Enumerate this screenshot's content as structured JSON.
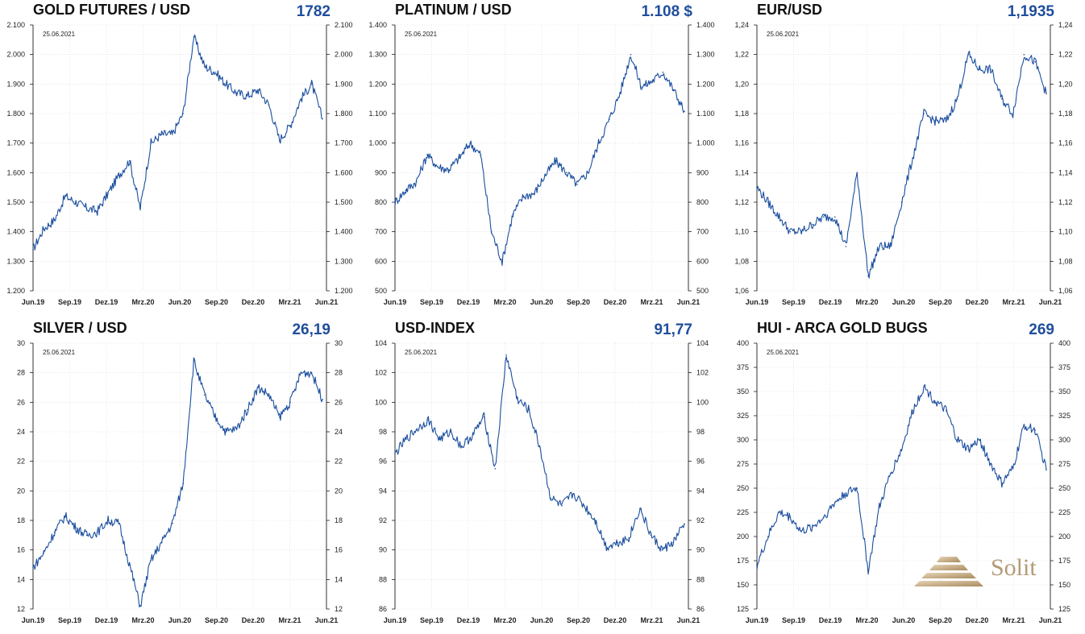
{
  "chart_data": [
    {
      "type": "line",
      "title": "GOLD FUTURES / USD",
      "current_value": "1782",
      "date_label": "25.06.2021",
      "x_tick_labels": [
        "Jun.19",
        "Sep.19",
        "Dez.19",
        "Mrz.20",
        "Jun.20",
        "Sep.20",
        "Dez.20",
        "Mrz.21",
        "Jun.21"
      ],
      "y_tick_labels": [
        "2.100",
        "2.000",
        "1.900",
        "1.800",
        "1.700",
        "1.600",
        "1.500",
        "1.400",
        "1.300",
        "1.200"
      ],
      "ylim": [
        1200,
        2100
      ],
      "x": [
        "2019-06",
        "2019-07",
        "2019-08",
        "2019-09",
        "2019-10",
        "2019-11",
        "2019-12",
        "2020-01",
        "2020-02",
        "2020-03a",
        "2020-03b",
        "2020-04",
        "2020-05",
        "2020-06",
        "2020-07",
        "2020-08a",
        "2020-08b",
        "2020-09",
        "2020-10",
        "2020-11",
        "2020-12",
        "2021-01",
        "2021-02",
        "2021-03",
        "2021-04",
        "2021-05",
        "2021-06a",
        "2021-06b"
      ],
      "series": [
        {
          "values": [
            1340,
            1410,
            1440,
            1520,
            1500,
            1480,
            1470,
            1530,
            1590,
            1640,
            1480,
            1700,
            1730,
            1730,
            1800,
            2060,
            1960,
            1940,
            1900,
            1870,
            1860,
            1880,
            1830,
            1710,
            1760,
            1850,
            1900,
            1782
          ]
        }
      ]
    },
    {
      "type": "line",
      "title": "PLATINUM / USD",
      "current_value": "1.108 $",
      "date_label": "25.06.2021",
      "x_tick_labels": [
        "Jun.19",
        "Sep.19",
        "Dez.19",
        "Mrz.20",
        "Jun.20",
        "Sep.20",
        "Dez.20",
        "Mrz.21",
        "Jun.21"
      ],
      "y_tick_labels": [
        "1.400",
        "1.300",
        "1.200",
        "1.100",
        "1.000",
        "900",
        "800",
        "700",
        "600",
        "500"
      ],
      "ylim": [
        500,
        1400
      ],
      "x": [
        "2019-06",
        "2019-07",
        "2019-08",
        "2019-09",
        "2019-10",
        "2019-11",
        "2019-12",
        "2020-01",
        "2020-02",
        "2020-03a",
        "2020-03b",
        "2020-04",
        "2020-05",
        "2020-06",
        "2020-07",
        "2020-08",
        "2020-09",
        "2020-10",
        "2020-11",
        "2020-12",
        "2021-01",
        "2021-02a",
        "2021-02b",
        "2021-03",
        "2021-04",
        "2021-05",
        "2021-06a",
        "2021-06b"
      ],
      "series": [
        {
          "values": [
            800,
            840,
            870,
            960,
            920,
            910,
            950,
            1000,
            960,
            700,
            600,
            760,
            820,
            830,
            890,
            940,
            900,
            860,
            900,
            1000,
            1080,
            1170,
            1300,
            1190,
            1210,
            1240,
            1180,
            1108
          ]
        }
      ]
    },
    {
      "type": "line",
      "title": "EUR/USD",
      "current_value": "1,1935",
      "date_label": "25.06.2021",
      "x_tick_labels": [
        "Jun.19",
        "Sep.19",
        "Dez.19",
        "Mrz.20",
        "Jun.20",
        "Sep.20",
        "Dez.20",
        "Mrz.21",
        "Jun.21"
      ],
      "y_tick_labels": [
        "1,24",
        "1,22",
        "1,20",
        "1,18",
        "1,16",
        "1,14",
        "1,12",
        "1,10",
        "1,08",
        "1,06"
      ],
      "ylim": [
        1.06,
        1.24
      ],
      "x": [
        "2019-06",
        "2019-07",
        "2019-08",
        "2019-09",
        "2019-10",
        "2019-11",
        "2019-12",
        "2020-01",
        "2020-02",
        "2020-03a",
        "2020-03b",
        "2020-04",
        "2020-05",
        "2020-06",
        "2020-07",
        "2020-08",
        "2020-09",
        "2020-10",
        "2020-11",
        "2020-12",
        "2021-01",
        "2021-02",
        "2021-03",
        "2021-04",
        "2021-05",
        "2021-06a",
        "2021-06b"
      ],
      "series": [
        {
          "values": [
            1.13,
            1.12,
            1.11,
            1.1,
            1.1,
            1.105,
            1.11,
            1.11,
            1.09,
            1.14,
            1.07,
            1.09,
            1.09,
            1.12,
            1.15,
            1.18,
            1.175,
            1.175,
            1.19,
            1.22,
            1.21,
            1.21,
            1.19,
            1.18,
            1.22,
            1.215,
            1.1935
          ]
        }
      ]
    },
    {
      "type": "line",
      "title": "SILVER / USD",
      "current_value": "26,19",
      "date_label": "25.06.2021",
      "x_tick_labels": [
        "Jun.19",
        "Sep.19",
        "Dez.19",
        "Mrz.20",
        "Jun.20",
        "Sep.20",
        "Dez.20",
        "Mrz.21",
        "Jun.21"
      ],
      "y_tick_labels": [
        "30",
        "28",
        "26",
        "24",
        "22",
        "20",
        "18",
        "16",
        "14",
        "12"
      ],
      "ylim": [
        12,
        30
      ],
      "x": [
        "2019-06",
        "2019-07",
        "2019-08",
        "2019-09",
        "2019-10",
        "2019-11",
        "2019-12",
        "2020-01",
        "2020-02",
        "2020-03a",
        "2020-03b",
        "2020-04",
        "2020-05",
        "2020-06",
        "2020-07",
        "2020-08a",
        "2020-08b",
        "2020-09",
        "2020-10",
        "2020-11",
        "2020-12",
        "2021-01",
        "2021-02",
        "2021-03",
        "2021-04",
        "2021-05",
        "2021-06a",
        "2021-06b"
      ],
      "series": [
        {
          "values": [
            14.8,
            15.8,
            17.2,
            18.3,
            17.5,
            17.0,
            17.2,
            18.0,
            17.8,
            15.0,
            12.2,
            15.3,
            16.5,
            17.8,
            20.5,
            28.8,
            26.5,
            25.0,
            24.0,
            24.2,
            25.5,
            27.0,
            26.5,
            25.0,
            26.0,
            28.0,
            28.0,
            26.19
          ]
        }
      ]
    },
    {
      "type": "line",
      "title": "USD-INDEX",
      "current_value": "91,77",
      "date_label": "25.06.2021",
      "x_tick_labels": [
        "Jun.19",
        "Sep.19",
        "Dez.19",
        "Mrz.20",
        "Jun.20",
        "Sep.20",
        "Dez.20",
        "Mrz.21",
        "Jun.21"
      ],
      "y_tick_labels": [
        "104",
        "102",
        "100",
        "98",
        "96",
        "94",
        "92",
        "90",
        "88",
        "86"
      ],
      "ylim": [
        86,
        104
      ],
      "x": [
        "2019-06",
        "2019-07",
        "2019-08",
        "2019-09",
        "2019-10",
        "2019-11",
        "2019-12",
        "2020-01",
        "2020-02",
        "2020-03a",
        "2020-03b",
        "2020-04",
        "2020-05",
        "2020-06",
        "2020-07",
        "2020-08",
        "2020-09",
        "2020-10",
        "2020-11",
        "2020-12",
        "2021-01",
        "2021-02",
        "2021-03",
        "2021-04",
        "2021-05",
        "2021-06a",
        "2021-06b"
      ],
      "series": [
        {
          "values": [
            96.5,
            97.5,
            98.2,
            98.8,
            97.5,
            98.0,
            97.0,
            97.8,
            99.0,
            95.5,
            103.2,
            100.2,
            99.5,
            97.0,
            93.5,
            93.0,
            93.8,
            93.0,
            92.0,
            90.2,
            90.5,
            90.8,
            92.8,
            91.0,
            90.0,
            90.5,
            91.77
          ]
        }
      ]
    },
    {
      "type": "line",
      "title": "HUI - ARCA GOLD BUGS",
      "current_value": "269",
      "date_label": "25.06.2021",
      "x_tick_labels": [
        "Jun.19",
        "Sep.19",
        "Dez.19",
        "Mrz.20",
        "Jun.20",
        "Sep.20",
        "Dez.20",
        "Mrz.21",
        "Jun.21"
      ],
      "y_tick_labels": [
        "400",
        "375",
        "350",
        "325",
        "300",
        "275",
        "250",
        "225",
        "200",
        "175",
        "150",
        "125"
      ],
      "ylim": [
        125,
        400
      ],
      "x": [
        "2019-06",
        "2019-07",
        "2019-08",
        "2019-09",
        "2019-10",
        "2019-11",
        "2019-12",
        "2020-01",
        "2020-02",
        "2020-03a",
        "2020-03b",
        "2020-04",
        "2020-05",
        "2020-06",
        "2020-07",
        "2020-08",
        "2020-09",
        "2020-10",
        "2020-11",
        "2020-12",
        "2021-01",
        "2021-02",
        "2021-03",
        "2021-04",
        "2021-05",
        "2021-06a",
        "2021-06b"
      ],
      "series": [
        {
          "values": [
            170,
            200,
            225,
            220,
            205,
            210,
            220,
            235,
            245,
            250,
            165,
            230,
            265,
            290,
            330,
            355,
            340,
            330,
            300,
            290,
            300,
            275,
            255,
            270,
            315,
            310,
            269
          ]
        }
      ]
    }
  ],
  "logo": {
    "text": "Solit"
  },
  "colors": {
    "line": "#1a4e9e",
    "value": "#1f4e9c",
    "grid": "#d8d8d8",
    "logo": "#b49a76"
  }
}
